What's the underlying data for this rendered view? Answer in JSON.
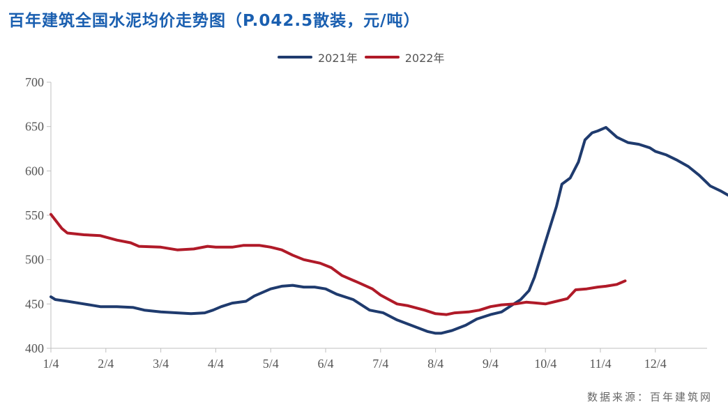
{
  "title": "百年建筑全国水泥均价走势图（P.042.5散装，元/吨）",
  "source": "数据来源：百年建筑网",
  "chart_data": {
    "type": "line",
    "title": "百年建筑全国水泥均价走势图（P.042.5散装，元/吨）",
    "xlabel": "",
    "ylabel": "",
    "ylim": [
      400,
      700
    ],
    "yticks": [
      400,
      450,
      500,
      550,
      600,
      650,
      700
    ],
    "xticks": [
      "1/4",
      "2/4",
      "3/4",
      "4/4",
      "5/4",
      "6/4",
      "7/4",
      "8/4",
      "9/4",
      "10/4",
      "11/4",
      "12/4"
    ],
    "grid": false,
    "legend_position": "top",
    "series": [
      {
        "name": "2021年",
        "color": "#1f3b6e",
        "points": [
          [
            0,
            458
          ],
          [
            0.08,
            455
          ],
          [
            0.3,
            453
          ],
          [
            0.6,
            450
          ],
          [
            0.9,
            447
          ],
          [
            1.2,
            447
          ],
          [
            1.5,
            446
          ],
          [
            1.7,
            443
          ],
          [
            2.0,
            441
          ],
          [
            2.3,
            440
          ],
          [
            2.55,
            439
          ],
          [
            2.8,
            440
          ],
          [
            2.95,
            443
          ],
          [
            3.1,
            447
          ],
          [
            3.3,
            451
          ],
          [
            3.55,
            453
          ],
          [
            3.7,
            459
          ],
          [
            3.85,
            463
          ],
          [
            4.0,
            467
          ],
          [
            4.2,
            470
          ],
          [
            4.4,
            471
          ],
          [
            4.6,
            469
          ],
          [
            4.8,
            469
          ],
          [
            5.0,
            467
          ],
          [
            5.2,
            461
          ],
          [
            5.5,
            455
          ],
          [
            5.8,
            443
          ],
          [
            6.05,
            440
          ],
          [
            6.3,
            432
          ],
          [
            6.6,
            425
          ],
          [
            6.85,
            419
          ],
          [
            7.0,
            417
          ],
          [
            7.1,
            417
          ],
          [
            7.3,
            420
          ],
          [
            7.55,
            426
          ],
          [
            7.75,
            433
          ],
          [
            8.0,
            438
          ],
          [
            8.2,
            441
          ],
          [
            8.4,
            449
          ],
          [
            8.55,
            455
          ],
          [
            8.7,
            465
          ],
          [
            8.8,
            480
          ],
          [
            8.9,
            500
          ],
          [
            9.0,
            520
          ],
          [
            9.1,
            540
          ],
          [
            9.2,
            560
          ],
          [
            9.3,
            585
          ],
          [
            9.45,
            592
          ],
          [
            9.6,
            610
          ],
          [
            9.72,
            635
          ],
          [
            9.85,
            643
          ],
          [
            9.95,
            645
          ],
          [
            10.1,
            649
          ],
          [
            10.3,
            638
          ],
          [
            10.5,
            632
          ],
          [
            10.7,
            630
          ],
          [
            10.9,
            626
          ],
          [
            11.0,
            622
          ],
          [
            11.2,
            618
          ],
          [
            11.4,
            612
          ],
          [
            11.6,
            605
          ],
          [
            11.8,
            595
          ],
          [
            12.0,
            583
          ],
          [
            12.2,
            577
          ],
          [
            12.4,
            570
          ],
          [
            12.5,
            565
          ],
          [
            12.6,
            557
          ]
        ]
      },
      {
        "name": "2022年",
        "color": "#b01a28",
        "points": [
          [
            0,
            551
          ],
          [
            0.1,
            543
          ],
          [
            0.2,
            535
          ],
          [
            0.3,
            530
          ],
          [
            0.6,
            528
          ],
          [
            0.9,
            527
          ],
          [
            1.2,
            522
          ],
          [
            1.45,
            519
          ],
          [
            1.6,
            515
          ],
          [
            2.0,
            514
          ],
          [
            2.3,
            511
          ],
          [
            2.6,
            512
          ],
          [
            2.85,
            515
          ],
          [
            3.0,
            514
          ],
          [
            3.3,
            514
          ],
          [
            3.5,
            516
          ],
          [
            3.8,
            516
          ],
          [
            4.0,
            514
          ],
          [
            4.2,
            511
          ],
          [
            4.4,
            505
          ],
          [
            4.6,
            500
          ],
          [
            4.9,
            496
          ],
          [
            5.1,
            491
          ],
          [
            5.3,
            482
          ],
          [
            5.6,
            474
          ],
          [
            5.85,
            467
          ],
          [
            6.0,
            460
          ],
          [
            6.15,
            455
          ],
          [
            6.3,
            450
          ],
          [
            6.5,
            448
          ],
          [
            6.8,
            443
          ],
          [
            7.0,
            439
          ],
          [
            7.2,
            438
          ],
          [
            7.35,
            440
          ],
          [
            7.6,
            441
          ],
          [
            7.8,
            443
          ],
          [
            8.0,
            447
          ],
          [
            8.2,
            449
          ],
          [
            8.45,
            450
          ],
          [
            8.65,
            452
          ],
          [
            8.85,
            451
          ],
          [
            9.0,
            450
          ],
          [
            9.2,
            453
          ],
          [
            9.4,
            456
          ],
          [
            9.55,
            466
          ],
          [
            9.75,
            467
          ],
          [
            9.95,
            469
          ],
          [
            10.1,
            470
          ],
          [
            10.3,
            472
          ],
          [
            10.45,
            476
          ]
        ]
      }
    ]
  }
}
